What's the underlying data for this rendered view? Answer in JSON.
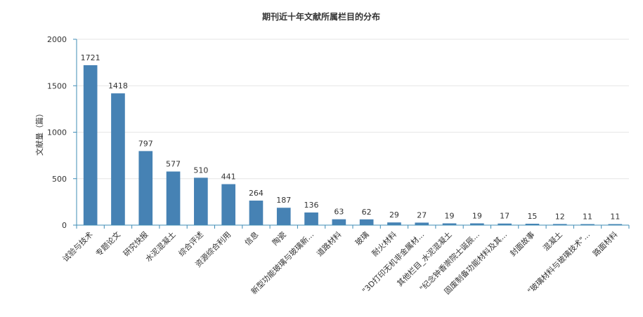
{
  "chart_data": {
    "type": "bar",
    "title": "期刊近十年文献所属栏目的分布",
    "xlabel": "",
    "ylabel": "文献量（篇）",
    "ylim": [
      0,
      2000
    ],
    "yticks": [
      0,
      500,
      1000,
      1500,
      2000
    ],
    "grid": true,
    "color": "#4682b4",
    "categories": [
      "试验与技术",
      "专题论文",
      "研究快报",
      "水泥混凝土",
      "综合评述",
      "资源综合利用",
      "信息",
      "陶瓷",
      "新型功能玻璃与玻璃新...",
      "道路材料",
      "玻璃",
      "耐火材料",
      "\"3D打印无机非金属材...",
      "其他栏目_水泥混凝土",
      "\"纪念钟香崇院士诞辰...",
      "固废制备功能材料及其...",
      "封面故事",
      "混凝土",
      "\"玻璃材料与玻璃技术\"...",
      "路面材料"
    ],
    "values": [
      1721,
      1418,
      797,
      577,
      510,
      441,
      264,
      187,
      136,
      63,
      62,
      29,
      27,
      19,
      19,
      17,
      15,
      12,
      11,
      11
    ]
  }
}
